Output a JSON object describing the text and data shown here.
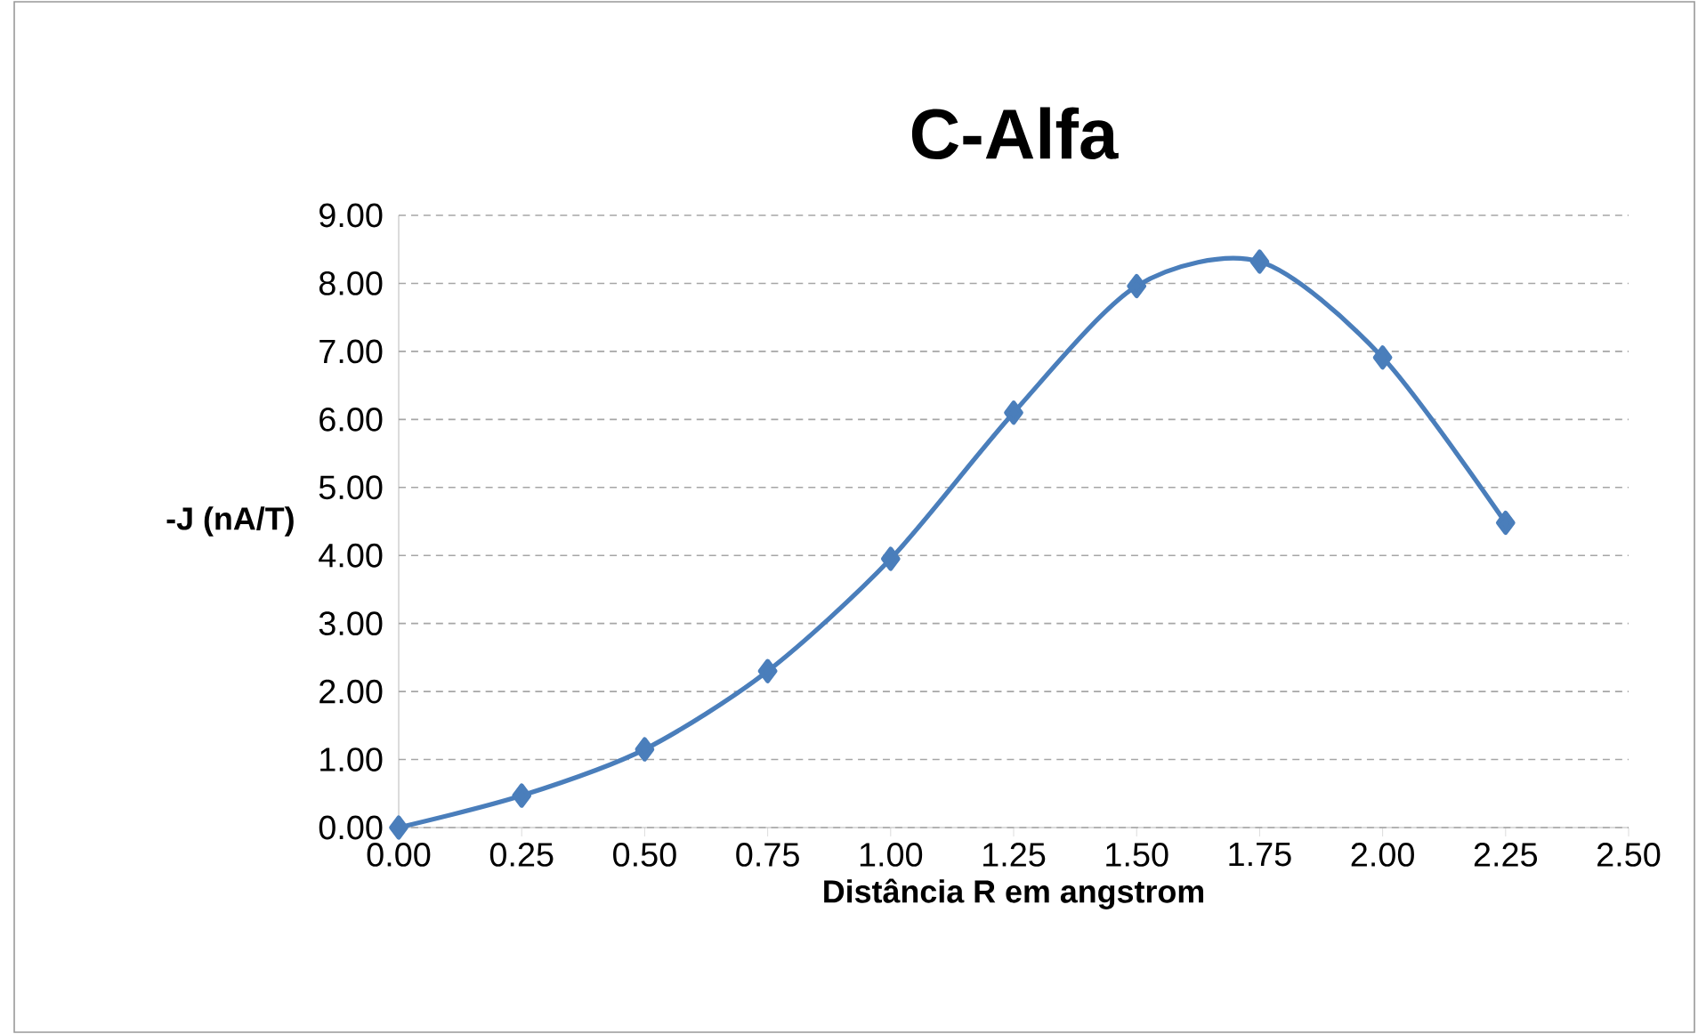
{
  "chart_data": {
    "type": "line",
    "title": "C-Alfa",
    "xlabel": "Distância R em angstrom",
    "ylabel": "-J (nA/T)",
    "x": [
      0,
      0.25,
      0.5,
      0.75,
      1.0,
      1.25,
      1.5,
      1.75,
      2.0,
      2.25
    ],
    "series": [
      {
        "color": "#4a7ebb",
        "values": [
          0,
          0.47,
          1.15,
          2.3,
          3.95,
          6.1,
          7.96,
          8.32,
          6.91,
          4.48
        ]
      }
    ],
    "xlim": [
      0,
      2.5
    ],
    "xticks": [
      {
        "value": 0,
        "label": "0.00"
      },
      {
        "value": 0.25,
        "label": "0.25"
      },
      {
        "value": 0.5,
        "label": "0.50"
      },
      {
        "value": 0.75,
        "label": "0.75"
      },
      {
        "value": 1,
        "label": "1.00"
      },
      {
        "value": 1.25,
        "label": "1.25"
      },
      {
        "value": 1.5,
        "label": "1.50"
      },
      {
        "value": 1.75,
        "label": "1.75"
      },
      {
        "value": 2,
        "label": "2.00"
      },
      {
        "value": 2.25,
        "label": "2.25"
      },
      {
        "value": 2.5,
        "label": "2.50"
      }
    ],
    "ylim": [
      0,
      9
    ],
    "yticks": [
      {
        "value": 0,
        "label": "0.00"
      },
      {
        "value": 1,
        "label": "1.00"
      },
      {
        "value": 2,
        "label": "2.00"
      },
      {
        "value": 3,
        "label": "3.00"
      },
      {
        "value": 4,
        "label": "4.00"
      },
      {
        "value": 5,
        "label": "5.00"
      },
      {
        "value": 6,
        "label": "6.00"
      },
      {
        "value": 7,
        "label": "7.00"
      },
      {
        "value": 8,
        "label": "8.00"
      },
      {
        "value": 9,
        "label": "9.00"
      }
    ],
    "grid": "y",
    "marker": "diamond",
    "line_style": "solid"
  }
}
